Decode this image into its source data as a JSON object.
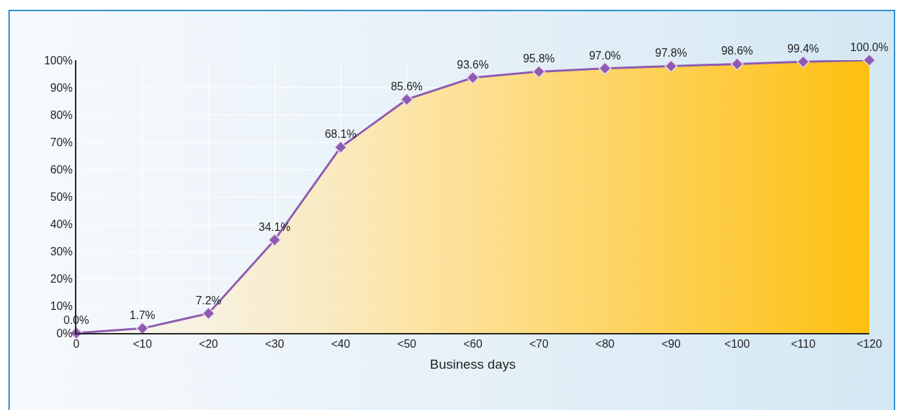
{
  "chart_data": {
    "type": "area",
    "xlabel": "Business days",
    "categories": [
      "0",
      "<10",
      "<20",
      "<30",
      "<40",
      "<50",
      "<60",
      "<70",
      "<80",
      "<90",
      "<100",
      "<110",
      "<120"
    ],
    "series": [
      {
        "color": "#8e5bb0",
        "values": [
          0,
          1.7,
          7.2,
          34.1,
          68.1,
          85.6,
          93.6,
          95.8,
          97.0,
          97.8,
          98.6,
          99.4,
          100.0
        ],
        "value_labels": [
          "0.0%",
          "1.7%",
          "7.2%",
          "34.1%",
          "68.1%",
          "85.6%",
          "93.6%",
          "95.8%",
          "97.0%",
          "97.8%",
          "98.6%",
          "99.4%",
          "100.0%"
        ]
      }
    ],
    "ylim": [
      0,
      100
    ],
    "yticks": [
      {
        "value": 0,
        "label": "0%"
      },
      {
        "value": 10,
        "label": "10%"
      },
      {
        "value": 20,
        "label": "20%"
      },
      {
        "value": 30,
        "label": "30%"
      },
      {
        "value": 40,
        "label": "40%"
      },
      {
        "value": 50,
        "label": "50%"
      },
      {
        "value": 60,
        "label": "60%"
      },
      {
        "value": 70,
        "label": "70%"
      },
      {
        "value": 80,
        "label": "80%"
      },
      {
        "value": 90,
        "label": "90%"
      },
      {
        "value": 100,
        "label": "100%"
      }
    ],
    "grid": true,
    "marker": "diamond",
    "line_style": "solid"
  }
}
